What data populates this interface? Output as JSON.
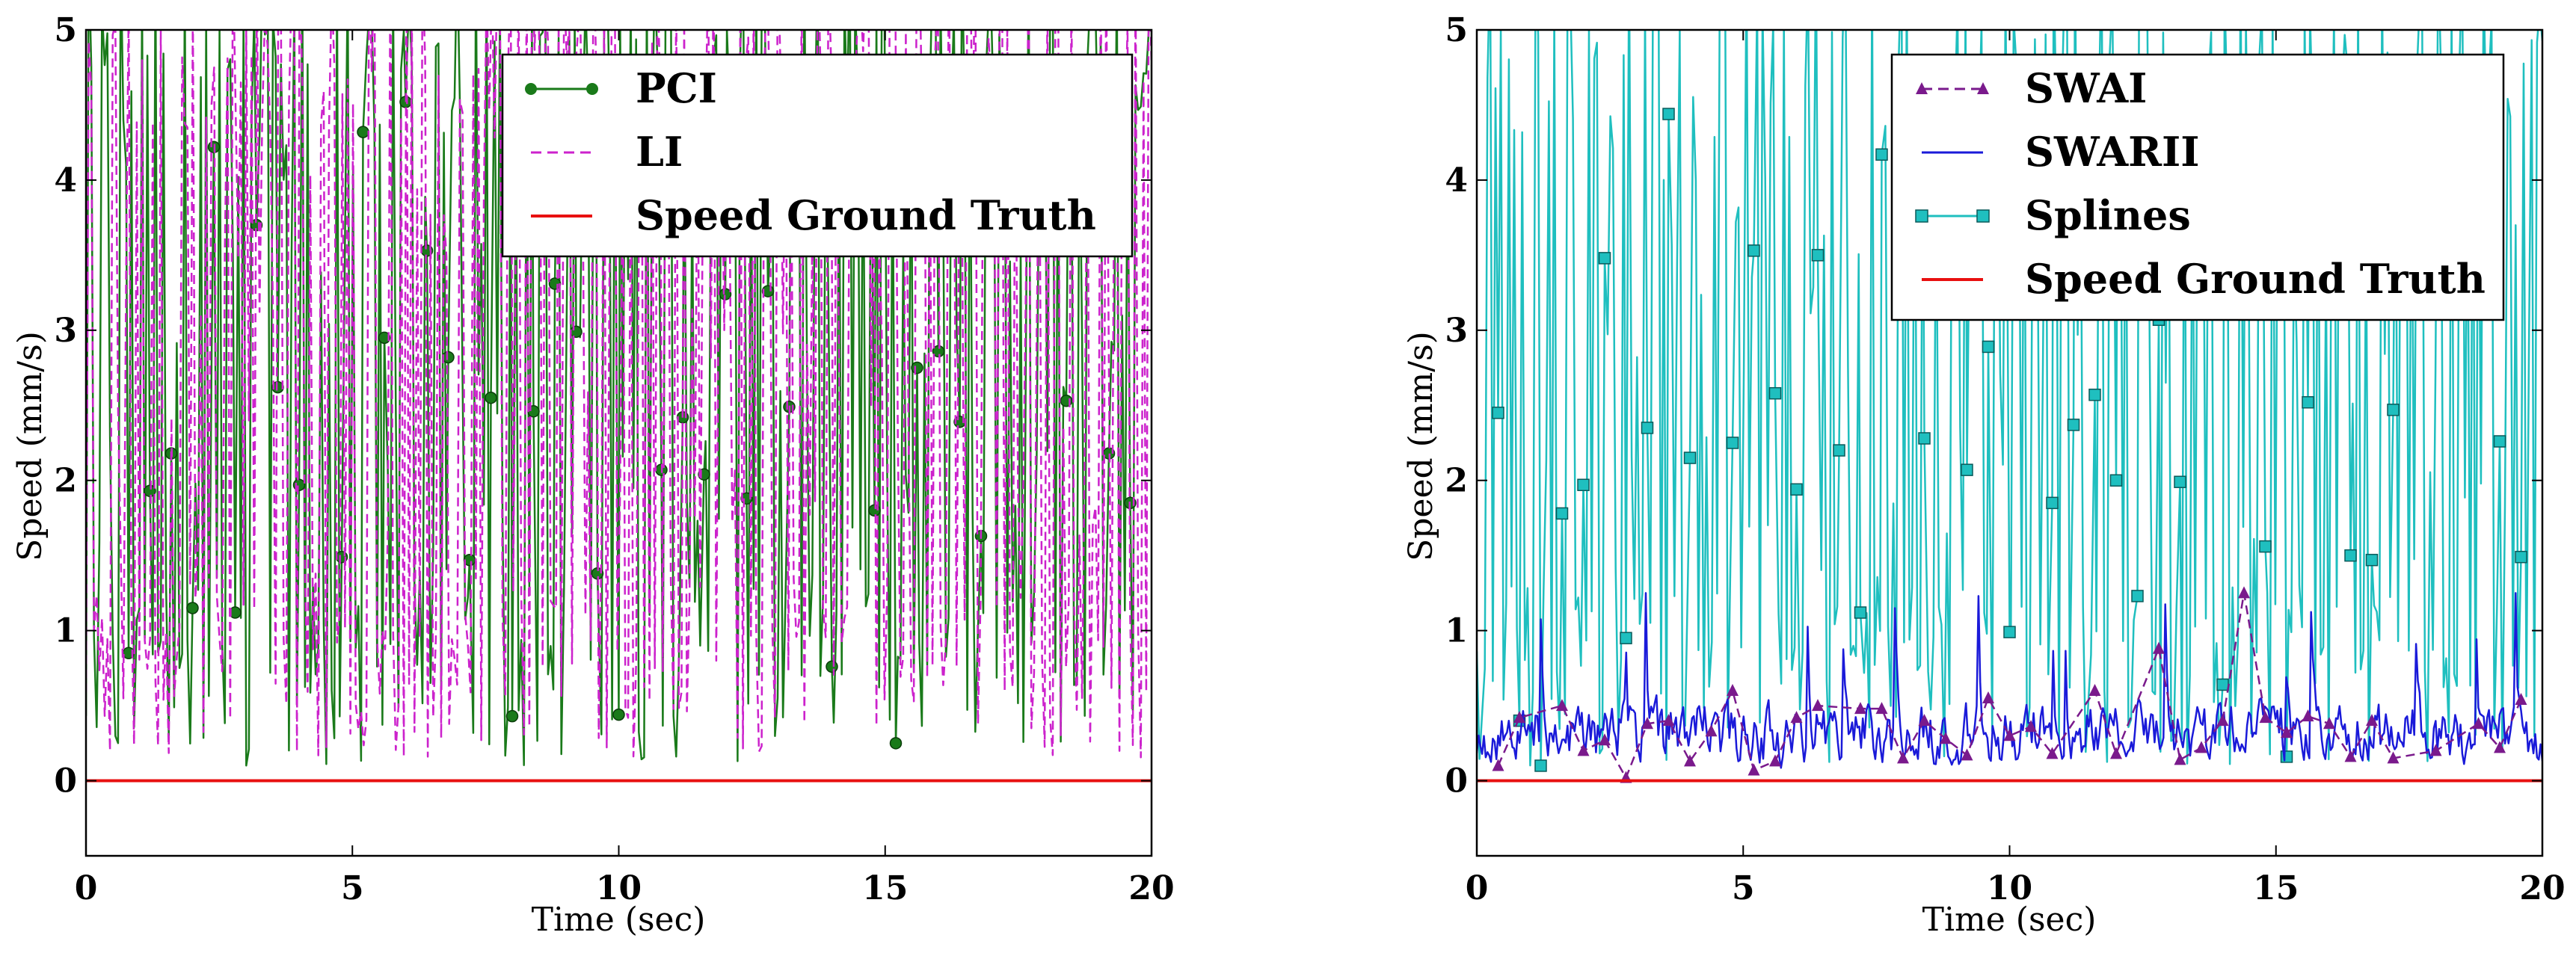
{
  "chart_data": [
    {
      "type": "line",
      "xlabel": "Time (sec)",
      "ylabel": "Speed (mm/s)",
      "xlim": [
        0,
        20
      ],
      "ylim": [
        -0.5,
        5
      ],
      "xticks": [
        "0",
        "5",
        "10",
        "15",
        "20"
      ],
      "yticks": [
        "0",
        "1",
        "2",
        "3",
        "4",
        "5"
      ],
      "legend_position": "top-right",
      "series": [
        {
          "name": "PCI",
          "color": "#1a7a1a",
          "style": "solid-markers-circle",
          "seed": 11,
          "n": 400,
          "lo": 0.1,
          "hi": 5.6,
          "base": 2.6,
          "markers": [
            [
              0.8,
              0.85
            ],
            [
              1.2,
              1.93
            ],
            [
              1.6,
              2.18
            ],
            [
              2.0,
              1.15
            ],
            [
              2.4,
              4.22
            ],
            [
              2.8,
              1.12
            ],
            [
              3.2,
              3.7
            ],
            [
              3.6,
              2.62
            ],
            [
              4.0,
              1.97
            ],
            [
              4.8,
              1.49
            ],
            [
              5.2,
              4.32
            ],
            [
              5.6,
              2.95
            ],
            [
              6.0,
              4.52
            ],
            [
              6.4,
              3.53
            ],
            [
              6.8,
              2.82
            ],
            [
              7.2,
              1.47
            ],
            [
              7.6,
              2.55
            ],
            [
              8.0,
              0.43
            ],
            [
              8.4,
              2.46
            ],
            [
              8.8,
              3.31
            ],
            [
              9.2,
              2.99
            ],
            [
              9.6,
              1.38
            ],
            [
              10.0,
              0.44
            ],
            [
              10.8,
              2.07
            ],
            [
              11.2,
              2.42
            ],
            [
              11.6,
              2.04
            ],
            [
              12.0,
              3.24
            ],
            [
              12.4,
              1.88
            ],
            [
              12.8,
              3.26
            ],
            [
              13.2,
              2.49
            ],
            [
              14.0,
              0.76
            ],
            [
              14.8,
              1.8
            ],
            [
              15.2,
              0.25
            ],
            [
              15.6,
              2.75
            ],
            [
              16.0,
              2.86
            ],
            [
              16.4,
              2.39
            ],
            [
              16.8,
              1.63
            ],
            [
              18.4,
              2.53
            ],
            [
              19.2,
              2.18
            ],
            [
              19.6,
              1.85
            ]
          ]
        },
        {
          "name": "LI",
          "color": "#cc22cc",
          "style": "dashed",
          "seed": 23,
          "n": 400,
          "lo": 0.15,
          "hi": 5.6,
          "base": 2.5
        },
        {
          "name": "Speed Ground Truth",
          "color": "#e81010",
          "style": "flat",
          "value": 0
        }
      ]
    },
    {
      "type": "line",
      "xlabel": "Time (sec)",
      "ylabel": "Speed (mm/s)",
      "xlim": [
        0,
        20
      ],
      "ylim": [
        -0.5,
        5
      ],
      "xticks": [
        "0",
        "5",
        "10",
        "15",
        "20"
      ],
      "yticks": [
        "0",
        "1",
        "2",
        "3",
        "4",
        "5"
      ],
      "legend_position": "top-right",
      "series": [
        {
          "name": "Splines",
          "color": "#1fbfbf",
          "style": "solid-markers-square",
          "seed": 37,
          "n": 400,
          "lo": 0.1,
          "hi": 5.6,
          "base": 2.7,
          "markers": [
            [
              0.4,
              2.45
            ],
            [
              0.8,
              0.4
            ],
            [
              1.2,
              0.1
            ],
            [
              1.6,
              1.78
            ],
            [
              2.0,
              1.97
            ],
            [
              2.4,
              3.48
            ],
            [
              2.8,
              0.95
            ],
            [
              3.2,
              2.35
            ],
            [
              3.6,
              4.44
            ],
            [
              4.0,
              2.15
            ],
            [
              4.8,
              2.25
            ],
            [
              5.2,
              3.53
            ],
            [
              5.6,
              2.58
            ],
            [
              6.0,
              1.94
            ],
            [
              6.4,
              3.5
            ],
            [
              6.8,
              2.2
            ],
            [
              7.2,
              1.12
            ],
            [
              7.6,
              4.17
            ],
            [
              8.4,
              2.28
            ],
            [
              9.2,
              2.07
            ],
            [
              9.6,
              2.89
            ],
            [
              10.0,
              0.99
            ],
            [
              10.8,
              1.85
            ],
            [
              11.2,
              2.37
            ],
            [
              11.6,
              2.57
            ],
            [
              12.0,
              2.0
            ],
            [
              12.4,
              1.23
            ],
            [
              12.8,
              3.07
            ],
            [
              13.2,
              1.99
            ],
            [
              14.0,
              0.64
            ],
            [
              14.8,
              1.56
            ],
            [
              15.2,
              0.16
            ],
            [
              15.6,
              2.52
            ],
            [
              16.4,
              1.5
            ],
            [
              16.8,
              1.47
            ],
            [
              17.2,
              2.47
            ],
            [
              19.2,
              2.26
            ],
            [
              19.6,
              1.49
            ]
          ]
        },
        {
          "name": "SWARII",
          "color": "#1a1ad9",
          "style": "solid",
          "seed": 53,
          "n": 600,
          "lo": 0.0,
          "hi": 1.25,
          "base": 0.32
        },
        {
          "name": "SWAI",
          "color": "#7a1a8c",
          "style": "dashed-markers-triangle",
          "markers": [
            [
              0.4,
              0.1
            ],
            [
              0.8,
              0.42
            ],
            [
              1.6,
              0.5
            ],
            [
              2.0,
              0.2
            ],
            [
              2.4,
              0.27
            ],
            [
              2.8,
              0.02
            ],
            [
              3.2,
              0.38
            ],
            [
              3.6,
              0.4
            ],
            [
              4.0,
              0.13
            ],
            [
              4.4,
              0.33
            ],
            [
              4.8,
              0.6
            ],
            [
              5.2,
              0.07
            ],
            [
              5.6,
              0.13
            ],
            [
              6.0,
              0.42
            ],
            [
              6.4,
              0.5
            ],
            [
              7.2,
              0.48
            ],
            [
              7.6,
              0.48
            ],
            [
              8.0,
              0.15
            ],
            [
              8.4,
              0.4
            ],
            [
              8.8,
              0.28
            ],
            [
              9.2,
              0.17
            ],
            [
              9.6,
              0.55
            ],
            [
              10.0,
              0.3
            ],
            [
              10.4,
              0.36
            ],
            [
              10.8,
              0.18
            ],
            [
              11.6,
              0.6
            ],
            [
              12.0,
              0.18
            ],
            [
              12.8,
              0.88
            ],
            [
              13.2,
              0.14
            ],
            [
              13.6,
              0.22
            ],
            [
              14.0,
              0.4
            ],
            [
              14.4,
              1.25
            ],
            [
              14.8,
              0.42
            ],
            [
              15.2,
              0.32
            ],
            [
              15.6,
              0.43
            ],
            [
              16.0,
              0.38
            ],
            [
              16.4,
              0.16
            ],
            [
              16.8,
              0.4
            ],
            [
              17.2,
              0.15
            ],
            [
              18.0,
              0.2
            ],
            [
              18.8,
              0.38
            ],
            [
              19.2,
              0.22
            ],
            [
              19.6,
              0.54
            ]
          ]
        },
        {
          "name": "Speed Ground Truth",
          "color": "#e81010",
          "style": "flat",
          "value": 0
        }
      ]
    }
  ],
  "legends": [
    [
      "PCI",
      "LI",
      "Speed Ground Truth"
    ],
    [
      "SWAI",
      "SWARII",
      "Splines",
      "Speed Ground Truth"
    ]
  ]
}
